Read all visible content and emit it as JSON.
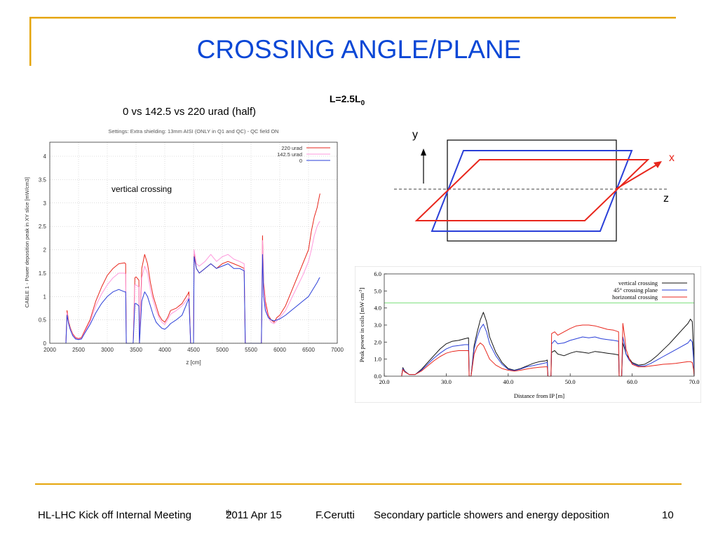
{
  "slide": {
    "title": "CROSSING ANGLE/PLANE",
    "lfactor_label": "L=2.5L",
    "lfactor_sub": "0",
    "angles_label": "0 vs 142.5 vs 220 urad (half)",
    "accent_color": "#e5a50a",
    "title_color": "#0a47d6"
  },
  "diagram": {
    "axis_y": "y",
    "axis_x": "x",
    "axis_z": "z",
    "plane_colors": {
      "red": "#e8261c",
      "blue": "#2a3fd8"
    }
  },
  "footer": {
    "meeting": "HL-LHC Kick off Internal Meeting",
    "date": "2011 Apr 15",
    "date_sup": "th",
    "author": "F.Cerutti",
    "topic": "Secondary particle showers and energy deposition",
    "page": "10"
  },
  "chart_data": [
    {
      "type": "line",
      "title": "Settings: Extra shielding: 13mm AISI (ONLY in Q1 and QC) - QC field ON",
      "xlabel": "z [cm]",
      "ylabel": "CABLE 1 - Power deposition peak in XY slice [mW/cm3]",
      "annotation": "vertical crossing",
      "xlim": [
        2000,
        7000
      ],
      "ylim": [
        0,
        4.3
      ],
      "xticks": [
        2000,
        2500,
        3000,
        3500,
        4000,
        4500,
        5000,
        5500,
        6000,
        6500,
        7000
      ],
      "yticks": [
        0,
        0.5,
        1,
        1.5,
        2,
        2.5,
        3,
        3.5,
        4
      ],
      "grid": true,
      "legend": "top-right",
      "series": [
        {
          "name": "220 urad",
          "color": "#e8261c",
          "x": [
            2280,
            2300,
            2330,
            2360,
            2400,
            2450,
            2500,
            2550,
            2600,
            2700,
            2800,
            2900,
            3000,
            3100,
            3200,
            3300,
            3320,
            3330,
            3400,
            3450,
            3480,
            3500,
            3550,
            3560,
            3600,
            3650,
            3700,
            3750,
            3800,
            3850,
            3900,
            3950,
            4000,
            4050,
            4100,
            4200,
            4300,
            4400,
            4420,
            4450,
            4480,
            4500,
            4510,
            4550,
            4600,
            4700,
            4800,
            4900,
            5000,
            5100,
            5200,
            5300,
            5380,
            5400,
            5680,
            5700,
            5720,
            5750,
            5800,
            5850,
            5900,
            5950,
            6000,
            6100,
            6200,
            6300,
            6400,
            6500,
            6550,
            6600,
            6650,
            6690,
            6700
          ],
          "y": [
            0,
            0.7,
            0.45,
            0.32,
            0.2,
            0.12,
            0.1,
            0.12,
            0.25,
            0.5,
            0.9,
            1.2,
            1.45,
            1.6,
            1.7,
            1.72,
            1.7,
            0,
            0,
            0,
            1.4,
            1.42,
            1.35,
            0,
            1.6,
            1.9,
            1.7,
            1.3,
            1.0,
            0.8,
            0.6,
            0.5,
            0.45,
            0.55,
            0.7,
            0.75,
            0.85,
            1.05,
            1.1,
            0,
            0,
            0,
            1.9,
            1.6,
            1.5,
            1.6,
            1.7,
            1.6,
            1.7,
            1.75,
            1.7,
            1.65,
            1.6,
            0,
            0,
            2.3,
            1.3,
            0.9,
            0.6,
            0.5,
            0.45,
            0.55,
            0.6,
            0.8,
            1.1,
            1.4,
            1.7,
            2.0,
            2.4,
            2.7,
            2.9,
            3.15,
            3.2
          ]
        },
        {
          "name": "142.5 urad",
          "color": "#ff99dd",
          "x": [
            2280,
            2300,
            2330,
            2360,
            2400,
            2450,
            2500,
            2550,
            2600,
            2700,
            2800,
            2900,
            3000,
            3100,
            3200,
            3300,
            3320,
            3330,
            3400,
            3450,
            3480,
            3500,
            3550,
            3560,
            3600,
            3650,
            3700,
            3750,
            3800,
            3850,
            3900,
            3950,
            4000,
            4050,
            4100,
            4200,
            4300,
            4400,
            4420,
            4450,
            4480,
            4500,
            4510,
            4550,
            4600,
            4700,
            4800,
            4900,
            5000,
            5100,
            5200,
            5300,
            5380,
            5400,
            5680,
            5700,
            5720,
            5750,
            5800,
            5850,
            5900,
            5950,
            6000,
            6100,
            6200,
            6300,
            6400,
            6500,
            6550,
            6600,
            6650,
            6690,
            6700
          ],
          "y": [
            0,
            0.65,
            0.42,
            0.3,
            0.18,
            0.1,
            0.09,
            0.1,
            0.22,
            0.45,
            0.8,
            1.05,
            1.25,
            1.4,
            1.5,
            1.5,
            1.48,
            0,
            0,
            0,
            1.25,
            1.25,
            1.2,
            0,
            1.4,
            1.65,
            1.5,
            1.15,
            0.9,
            0.7,
            0.55,
            0.45,
            0.4,
            0.5,
            0.62,
            0.7,
            0.8,
            0.95,
            1.0,
            0,
            0,
            0,
            2.0,
            1.7,
            1.65,
            1.75,
            1.9,
            1.75,
            1.85,
            1.9,
            1.8,
            1.75,
            1.7,
            0,
            0,
            2.2,
            1.2,
            0.8,
            0.55,
            0.45,
            0.42,
            0.48,
            0.55,
            0.7,
            0.95,
            1.2,
            1.45,
            1.75,
            2.0,
            2.3,
            2.5,
            2.6,
            2.6
          ]
        },
        {
          "name": "0",
          "color": "#2a3fd8",
          "x": [
            2280,
            2300,
            2330,
            2360,
            2400,
            2450,
            2500,
            2550,
            2600,
            2700,
            2800,
            2900,
            3000,
            3100,
            3200,
            3300,
            3320,
            3330,
            3400,
            3450,
            3480,
            3500,
            3550,
            3560,
            3600,
            3650,
            3700,
            3750,
            3800,
            3850,
            3900,
            3950,
            4000,
            4050,
            4100,
            4200,
            4300,
            4400,
            4420,
            4450,
            4480,
            4500,
            4510,
            4550,
            4600,
            4700,
            4800,
            4900,
            5000,
            5100,
            5200,
            5300,
            5380,
            5400,
            5680,
            5700,
            5720,
            5750,
            5800,
            5850,
            5900,
            5950,
            6000,
            6100,
            6200,
            6300,
            6400,
            6500,
            6550,
            6600,
            6650,
            6690,
            6700
          ],
          "y": [
            0,
            0.6,
            0.4,
            0.28,
            0.16,
            0.09,
            0.08,
            0.09,
            0.2,
            0.4,
            0.65,
            0.85,
            1.0,
            1.1,
            1.15,
            1.1,
            1.1,
            0,
            0,
            0,
            0.85,
            0.85,
            0.8,
            0,
            0.9,
            1.1,
            1.0,
            0.8,
            0.6,
            0.45,
            0.38,
            0.32,
            0.3,
            0.35,
            0.42,
            0.5,
            0.6,
            0.9,
            0.95,
            0,
            0,
            0,
            1.85,
            1.6,
            1.5,
            1.6,
            1.7,
            1.6,
            1.65,
            1.7,
            1.6,
            1.6,
            1.55,
            0,
            0,
            1.9,
            1.0,
            0.7,
            0.55,
            0.5,
            0.48,
            0.5,
            0.52,
            0.6,
            0.7,
            0.8,
            0.9,
            1.0,
            1.1,
            1.2,
            1.3,
            1.4,
            1.4
          ]
        }
      ]
    },
    {
      "type": "line",
      "xlabel": "Distance from IP [m]",
      "ylabel": "Peak power in coils [mW cm-3]",
      "ylabel_main": "Peak power in coils [mW cm",
      "ylabel_sup": "-3",
      "ylabel_end": "]",
      "xlim": [
        20,
        70
      ],
      "ylim": [
        0,
        6
      ],
      "xticks": [
        "20.0",
        "30.0",
        "40.0",
        "50.0",
        "60.0",
        "70.0"
      ],
      "yticks": [
        "0.0",
        "1.0",
        "2.0",
        "3.0",
        "4.0",
        "5.0",
        "6.0"
      ],
      "reference_line": {
        "y": 4.3,
        "color": "#7be07b"
      },
      "legend": "top-right",
      "series": [
        {
          "name": "vertical crossing",
          "color": "#111111",
          "x": [
            22.8,
            23,
            23.3,
            24,
            25,
            26,
            27,
            28,
            29,
            30,
            31,
            32,
            33,
            33.6,
            33.7,
            34,
            34.5,
            35,
            35.5,
            36,
            36.5,
            37,
            38,
            39,
            40,
            41,
            42,
            43,
            44,
            45,
            46,
            46.3,
            46.4,
            46.9,
            47,
            47.5,
            48,
            49,
            50,
            51,
            52,
            53,
            54,
            55,
            56,
            57,
            57.8,
            57.9,
            58.3,
            58.5,
            58.8,
            59,
            59.5,
            60,
            61,
            62,
            63,
            64,
            65,
            66,
            67,
            68,
            69,
            69.4,
            69.7,
            69.9,
            70
          ],
          "y": [
            0,
            0.5,
            0.3,
            0.1,
            0.1,
            0.4,
            0.8,
            1.2,
            1.6,
            1.9,
            2.05,
            2.1,
            2.2,
            2.25,
            0,
            0,
            1.8,
            2.6,
            3.3,
            3.75,
            3.2,
            2.3,
            1.4,
            0.8,
            0.45,
            0.35,
            0.45,
            0.6,
            0.75,
            0.85,
            0.9,
            0.95,
            0,
            0,
            1.4,
            1.5,
            1.3,
            1.2,
            1.35,
            1.45,
            1.4,
            1.35,
            1.45,
            1.4,
            1.35,
            1.3,
            1.25,
            0,
            0,
            1.95,
            1.6,
            1.3,
            1.05,
            0.8,
            0.65,
            0.7,
            0.9,
            1.2,
            1.55,
            1.9,
            2.3,
            2.7,
            3.1,
            3.35,
            3.2,
            1.5,
            0
          ]
        },
        {
          "name": "45° crossing plane",
          "color": "#2a3fd8",
          "x": [
            22.8,
            23,
            23.3,
            24,
            25,
            26,
            27,
            28,
            29,
            30,
            31,
            32,
            33,
            33.6,
            33.7,
            34,
            34.5,
            35,
            35.5,
            36,
            36.5,
            37,
            38,
            39,
            40,
            41,
            42,
            43,
            44,
            45,
            46,
            46.3,
            46.4,
            46.9,
            47,
            47.5,
            48,
            49,
            50,
            51,
            52,
            53,
            54,
            55,
            56,
            57,
            57.8,
            57.9,
            58.3,
            58.5,
            58.8,
            59,
            59.5,
            60,
            61,
            62,
            63,
            64,
            65,
            66,
            67,
            68,
            69,
            69.4,
            69.7,
            69.9,
            70
          ],
          "y": [
            0,
            0.45,
            0.28,
            0.1,
            0.1,
            0.35,
            0.7,
            1.05,
            1.35,
            1.6,
            1.75,
            1.8,
            1.85,
            1.85,
            0,
            0,
            1.6,
            2.3,
            2.8,
            3.05,
            2.6,
            1.9,
            1.2,
            0.7,
            0.4,
            0.33,
            0.42,
            0.55,
            0.62,
            0.7,
            0.78,
            0.8,
            0,
            0,
            1.9,
            2.1,
            1.9,
            1.95,
            2.1,
            2.2,
            2.3,
            2.25,
            2.3,
            2.2,
            2.15,
            2.1,
            2.05,
            0,
            0,
            2.3,
            1.8,
            1.3,
            0.95,
            0.75,
            0.6,
            0.6,
            0.75,
            0.95,
            1.15,
            1.35,
            1.55,
            1.75,
            1.95,
            2.15,
            2.0,
            1.0,
            0
          ]
        },
        {
          "name": "horizontal crossing",
          "color": "#e8261c",
          "x": [
            22.8,
            23,
            23.3,
            24,
            25,
            26,
            27,
            28,
            29,
            30,
            31,
            32,
            33,
            33.6,
            33.7,
            34,
            34.5,
            35,
            35.5,
            36,
            36.5,
            37,
            38,
            39,
            40,
            41,
            42,
            43,
            44,
            45,
            46,
            46.3,
            46.4,
            46.9,
            47,
            47.5,
            48,
            49,
            50,
            51,
            52,
            53,
            54,
            55,
            56,
            57,
            57.8,
            57.9,
            58.3,
            58.5,
            58.8,
            59,
            59.5,
            60,
            61,
            62,
            63,
            64,
            65,
            66,
            67,
            68,
            69,
            69.4,
            69.7,
            69.9,
            70
          ],
          "y": [
            0,
            0.4,
            0.25,
            0.1,
            0.1,
            0.3,
            0.6,
            0.9,
            1.15,
            1.35,
            1.45,
            1.5,
            1.5,
            1.5,
            0,
            0,
            1.3,
            1.75,
            1.95,
            1.8,
            1.4,
            1.0,
            0.65,
            0.45,
            0.35,
            0.3,
            0.35,
            0.42,
            0.48,
            0.52,
            0.55,
            0.55,
            0,
            0,
            2.5,
            2.6,
            2.4,
            2.6,
            2.8,
            2.95,
            3.0,
            3.0,
            2.95,
            2.85,
            2.75,
            2.7,
            2.6,
            0,
            0,
            3.1,
            2.3,
            1.6,
            1.05,
            0.7,
            0.55,
            0.55,
            0.6,
            0.65,
            0.7,
            0.72,
            0.75,
            0.8,
            0.85,
            0.85,
            0.8,
            0.4,
            0
          ]
        }
      ]
    }
  ]
}
